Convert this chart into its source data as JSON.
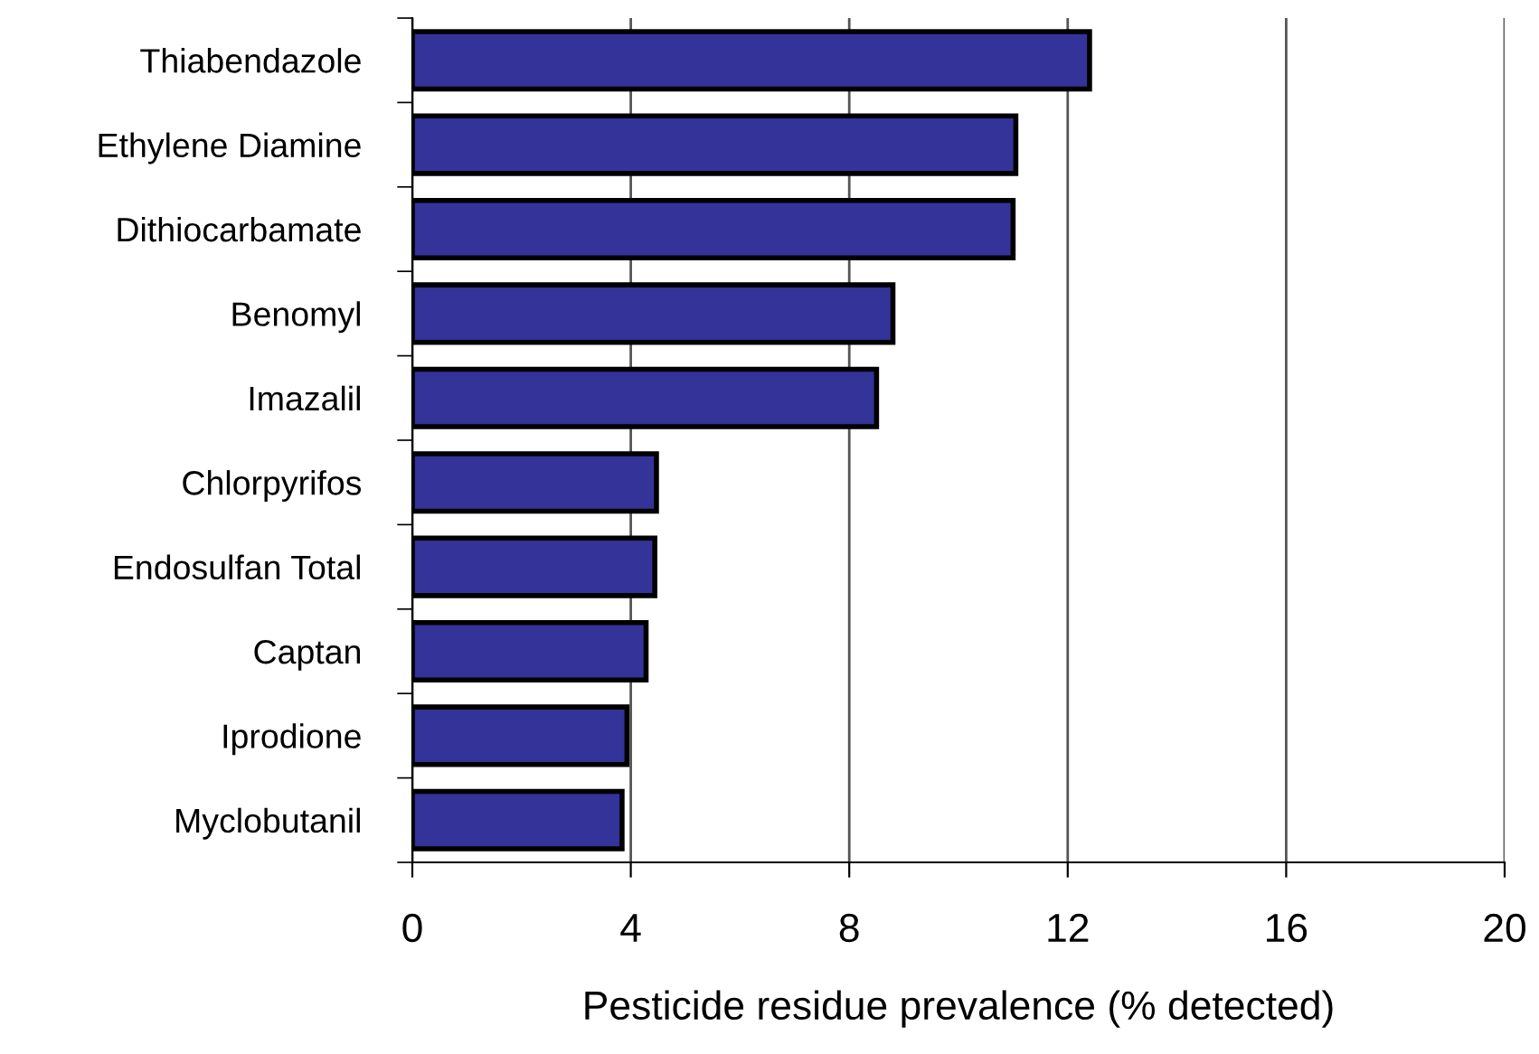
{
  "chart_data": {
    "type": "bar",
    "orientation": "horizontal",
    "xlabel": "Pesticide residue prevalence (% detected)",
    "categories": [
      "Thiabendazole",
      "Ethylene Diamine",
      "Dithiocarbamate",
      "Benomyl",
      "Imazalil",
      "Chlorpyrifos",
      "Endosulfan Total",
      "Captan",
      "Iprodione",
      "Myclobutanil"
    ],
    "values": [
      12.4,
      11.05,
      11.0,
      8.8,
      8.5,
      4.47,
      4.44,
      4.28,
      3.93,
      3.84
    ],
    "color": "#333399",
    "xlim": [
      0,
      20
    ],
    "xticks": [
      0,
      4,
      8,
      12,
      16,
      20
    ],
    "grid": "x",
    "legend": false
  }
}
